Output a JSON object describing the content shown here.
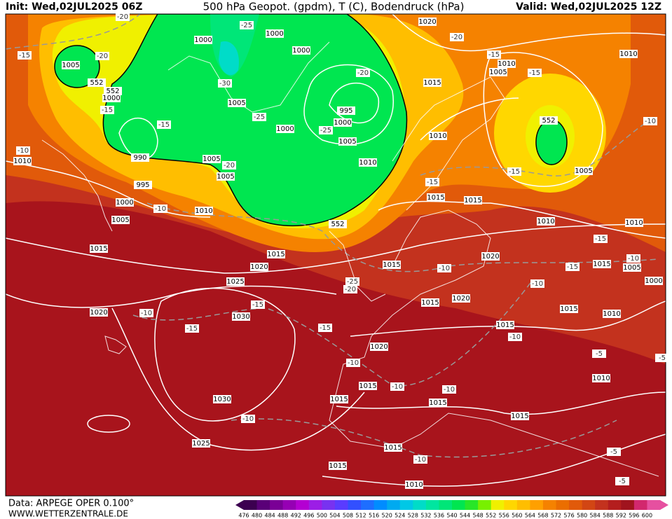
{
  "header": {
    "init": "Init: Wed,02JUL2025 06Z",
    "title": "500 hPa Geopot. (gpdm), T (C), Bodendruck (hPa)",
    "valid": "Valid: Wed,02JUL2025 12Z"
  },
  "footer": {
    "source": "Data: ARPEGE OPER 0.100°",
    "site": "WWW.WETTERZENTRALE.DE"
  },
  "pressure_labels": [
    1020,
    1010,
    1000,
    1000,
    1000,
    1005,
    1010,
    1005,
    1015,
    552,
    552,
    1000,
    995,
    1000,
    1005,
    1000,
    1005,
    552,
    1010,
    990,
    1005,
    1005,
    1010,
    1010,
    995,
    1000,
    1005,
    1010,
    1015,
    1015,
    1010,
    1005,
    552,
    1010,
    1015,
    1015,
    1020,
    1015,
    1020,
    1015,
    1005,
    1000,
    1025,
    1015,
    1020,
    1015,
    1010,
    1020,
    1030,
    1015,
    1020,
    1010,
    1015,
    1015,
    1015,
    1030,
    1015,
    1025,
    1015,
    1015,
    1010
  ],
  "temperature_labels": [
    -20,
    -25,
    -15,
    -20,
    -20,
    -15,
    -15,
    -30,
    -20,
    -15,
    -15,
    -25,
    -25,
    -10,
    -10,
    -20,
    -15,
    -15,
    -10,
    -15,
    -10,
    -15,
    -10,
    -25,
    -20,
    -10,
    -10,
    -15,
    -15,
    -15,
    -10,
    -10,
    -5,
    -5,
    -10,
    -10,
    -10,
    -5,
    -10,
    -5
  ],
  "legend": {
    "labels": [
      476,
      480,
      484,
      488,
      492,
      496,
      500,
      504,
      508,
      512,
      516,
      520,
      524,
      528,
      532,
      536,
      540,
      544,
      548,
      552,
      556,
      560,
      564,
      568,
      572,
      576,
      580,
      584,
      588,
      592,
      596,
      600
    ],
    "colors": [
      "#3c0050",
      "#5a0078",
      "#7a0096",
      "#9600b4",
      "#b400d2",
      "#9c1ee6",
      "#7832f0",
      "#5a3cff",
      "#3250ff",
      "#1e6eff",
      "#008cff",
      "#00aaf0",
      "#00c8e6",
      "#00dcc8",
      "#00e6a0",
      "#00e678",
      "#00e650",
      "#28e628",
      "#78f000",
      "#f0f000",
      "#ffd700",
      "#ffbe00",
      "#ffa000",
      "#f58200",
      "#eb6e00",
      "#e15a0a",
      "#d24614",
      "#c3321e",
      "#b41e1e",
      "#a0141e",
      "#d2286e",
      "#e650a0"
    ]
  }
}
